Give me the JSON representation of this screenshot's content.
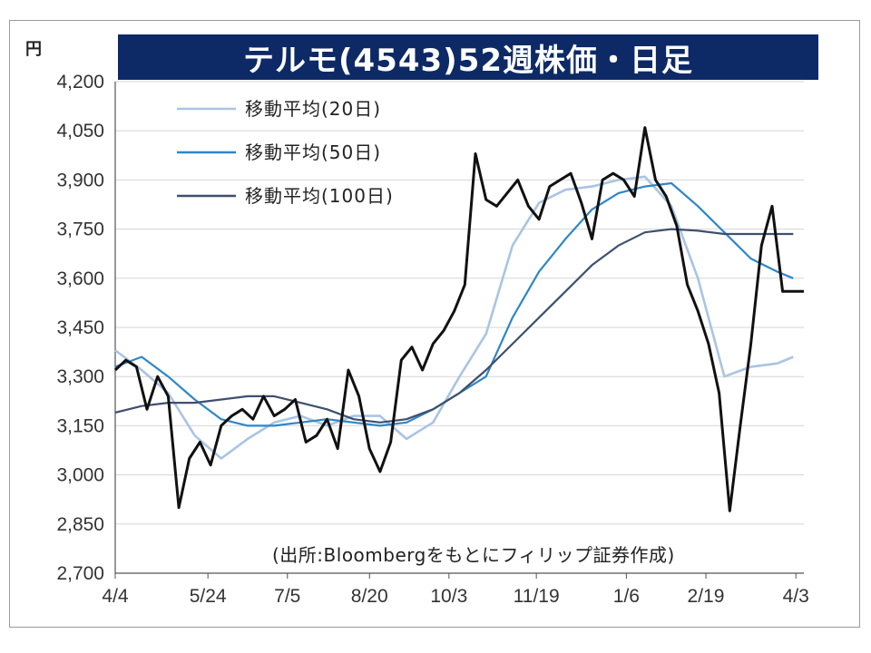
{
  "chart_data": {
    "type": "line",
    "title": "テルモ(4543)52週株価・日足",
    "unit": "円",
    "source_note": "(出所:Bloombergをもとにフィリップ証券作成)",
    "ylim": [
      2700,
      4200
    ],
    "yticks": [
      4200,
      4050,
      3900,
      3750,
      3600,
      3450,
      3300,
      3150,
      3000,
      2850,
      2700
    ],
    "ytick_labels": [
      "4,200",
      "4,050",
      "3,900",
      "3,750",
      "3,600",
      "3,450",
      "3,300",
      "3,150",
      "3,000",
      "2,850",
      "2,700"
    ],
    "xtick_labels": [
      "4/4",
      "5/24",
      "7/5",
      "8/20",
      "10/3",
      "11/19",
      "1/6",
      "2/19",
      "4/3"
    ],
    "xtick_index": [
      0,
      35,
      65,
      96,
      126,
      159,
      193,
      223,
      257
    ],
    "grid": "horizontal",
    "legend_position": "top-left",
    "colors": {
      "price": "#111111",
      "ma20": "#a9c4e4",
      "ma50": "#2e86c9",
      "ma100": "#3e4f6e",
      "title_bg": "#0d2a66"
    },
    "series": [
      {
        "name": "price",
        "x": [
          0,
          4,
          8,
          12,
          16,
          20,
          24,
          28,
          32,
          36,
          40,
          44,
          48,
          52,
          56,
          60,
          64,
          68,
          72,
          76,
          80,
          84,
          88,
          92,
          96,
          100,
          104,
          108,
          112,
          116,
          120,
          124,
          128,
          132,
          136,
          140,
          144,
          148,
          152,
          156,
          160,
          164,
          168,
          172,
          176,
          180,
          184,
          188,
          192,
          196,
          200,
          204,
          208,
          212,
          216,
          220,
          224,
          228,
          232,
          236,
          240,
          244,
          248,
          252,
          256,
          260
        ],
        "values": [
          3320,
          3350,
          3330,
          3200,
          3300,
          3240,
          2900,
          3050,
          3100,
          3030,
          3150,
          3180,
          3200,
          3170,
          3240,
          3180,
          3200,
          3230,
          3100,
          3120,
          3170,
          3080,
          3320,
          3240,
          3080,
          3010,
          3100,
          3350,
          3390,
          3320,
          3400,
          3440,
          3500,
          3580,
          3980,
          3840,
          3820,
          3860,
          3900,
          3820,
          3780,
          3880,
          3900,
          3920,
          3830,
          3720,
          3900,
          3920,
          3900,
          3850,
          4060,
          3900,
          3850,
          3760,
          3580,
          3500,
          3400,
          3250,
          2890,
          3150,
          3400,
          3700,
          3820,
          3560,
          3560,
          3560
        ]
      },
      {
        "name": "移動平均(20日)",
        "x": [
          0,
          10,
          20,
          30,
          40,
          50,
          60,
          70,
          80,
          90,
          100,
          110,
          120,
          130,
          140,
          150,
          160,
          170,
          180,
          190,
          200,
          210,
          220,
          230,
          240,
          250,
          256
        ],
        "values": [
          3380,
          3320,
          3250,
          3120,
          3050,
          3110,
          3160,
          3180,
          3150,
          3180,
          3180,
          3110,
          3160,
          3300,
          3430,
          3700,
          3830,
          3870,
          3880,
          3900,
          3910,
          3820,
          3600,
          3300,
          3330,
          3340,
          3360
        ]
      },
      {
        "name": "移動平均(50日)",
        "x": [
          0,
          10,
          20,
          30,
          40,
          50,
          60,
          70,
          80,
          90,
          100,
          110,
          120,
          130,
          140,
          150,
          160,
          170,
          180,
          190,
          200,
          210,
          220,
          230,
          240,
          250,
          256
        ],
        "values": [
          3330,
          3360,
          3300,
          3230,
          3170,
          3150,
          3150,
          3160,
          3170,
          3160,
          3150,
          3160,
          3200,
          3250,
          3300,
          3480,
          3620,
          3720,
          3810,
          3860,
          3880,
          3890,
          3820,
          3740,
          3660,
          3620,
          3600
        ]
      },
      {
        "name": "移動平均(100日)",
        "x": [
          0,
          10,
          20,
          30,
          40,
          50,
          60,
          70,
          80,
          90,
          100,
          110,
          120,
          130,
          140,
          150,
          160,
          170,
          180,
          190,
          200,
          210,
          220,
          230,
          240,
          250,
          256
        ],
        "values": [
          3190,
          3210,
          3220,
          3220,
          3230,
          3240,
          3240,
          3220,
          3200,
          3170,
          3160,
          3170,
          3200,
          3250,
          3320,
          3400,
          3480,
          3560,
          3640,
          3700,
          3740,
          3750,
          3745,
          3735,
          3735,
          3735,
          3735
        ]
      }
    ]
  }
}
